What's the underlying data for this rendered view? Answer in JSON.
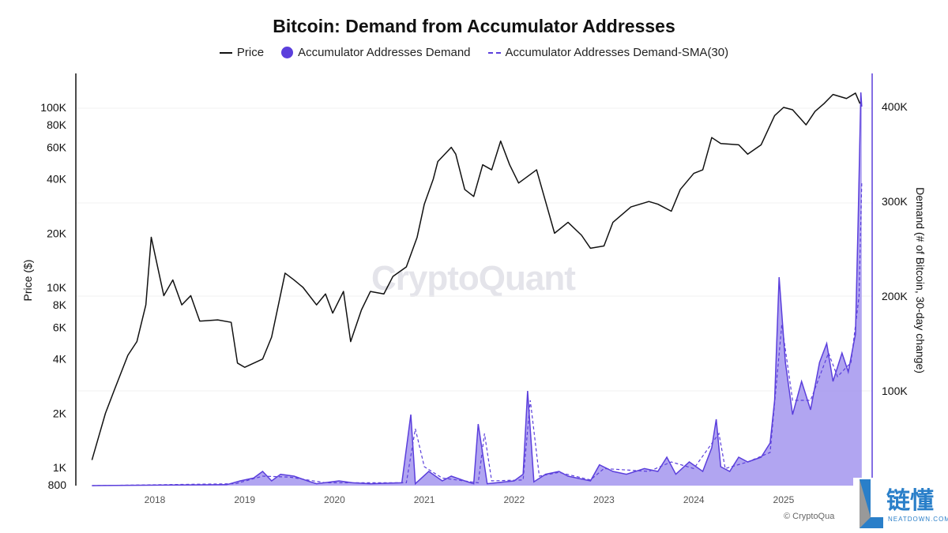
{
  "chart_data": {
    "type": "line",
    "title": "Bitcoin: Demand from Accumulator Addresses",
    "legend": [
      "Price",
      "Accumulator Addresses Demand",
      "Accumulator Addresses Demand-SMA(30)"
    ],
    "legend_placement": "top",
    "ylabel_left": "Price ($)",
    "ylabel_right": "Demand (# of Bitcoin, 30-day change)",
    "y_left_scale": "log",
    "y_left_range": [
      800,
      180000
    ],
    "y_left_ticks": [
      "100K",
      "80K",
      "60K",
      "40K",
      "20K",
      "10K",
      "8K",
      "6K",
      "4K",
      "2K",
      "1K",
      "800"
    ],
    "y_left_tick_values": [
      100000,
      80000,
      60000,
      40000,
      20000,
      10000,
      8000,
      6000,
      4000,
      2000,
      1000,
      800
    ],
    "y_right_range": [
      0,
      430000
    ],
    "y_right_ticks": [
      "400K",
      "300K",
      "200K",
      "100K"
    ],
    "y_right_tick_values": [
      400000,
      300000,
      200000,
      100000
    ],
    "x_ticks": [
      "2018",
      "2019",
      "2020",
      "2021",
      "2022",
      "2023",
      "2024",
      "2025"
    ],
    "colors": {
      "price": "#111111",
      "demand": "#5b3fdc",
      "demand_fill": "#a99bf0",
      "sma": "#5b3fdc"
    },
    "price": [
      [
        2017.3,
        1100
      ],
      [
        2017.45,
        2000
      ],
      [
        2017.55,
        2700
      ],
      [
        2017.7,
        4200
      ],
      [
        2017.8,
        5000
      ],
      [
        2017.9,
        8000
      ],
      [
        2017.96,
        19000
      ],
      [
        2018.1,
        9000
      ],
      [
        2018.2,
        11000
      ],
      [
        2018.3,
        8000
      ],
      [
        2018.4,
        9000
      ],
      [
        2018.5,
        6500
      ],
      [
        2018.7,
        6600
      ],
      [
        2018.85,
        6400
      ],
      [
        2018.92,
        3800
      ],
      [
        2019.0,
        3600
      ],
      [
        2019.2,
        4000
      ],
      [
        2019.3,
        5300
      ],
      [
        2019.45,
        12000
      ],
      [
        2019.55,
        11000
      ],
      [
        2019.65,
        10000
      ],
      [
        2019.8,
        8000
      ],
      [
        2019.9,
        9200
      ],
      [
        2019.98,
        7200
      ],
      [
        2020.1,
        9500
      ],
      [
        2020.18,
        5000
      ],
      [
        2020.3,
        7500
      ],
      [
        2020.4,
        9500
      ],
      [
        2020.55,
        9200
      ],
      [
        2020.65,
        11500
      ],
      [
        2020.8,
        13000
      ],
      [
        2020.92,
        19000
      ],
      [
        2021.0,
        29000
      ],
      [
        2021.1,
        40000
      ],
      [
        2021.15,
        50000
      ],
      [
        2021.3,
        60000
      ],
      [
        2021.35,
        55000
      ],
      [
        2021.45,
        35000
      ],
      [
        2021.55,
        32000
      ],
      [
        2021.65,
        48000
      ],
      [
        2021.75,
        45000
      ],
      [
        2021.85,
        65000
      ],
      [
        2021.95,
        48000
      ],
      [
        2022.05,
        38000
      ],
      [
        2022.25,
        45000
      ],
      [
        2022.35,
        30000
      ],
      [
        2022.45,
        20000
      ],
      [
        2022.6,
        23000
      ],
      [
        2022.75,
        19500
      ],
      [
        2022.85,
        16500
      ],
      [
        2023.0,
        17000
      ],
      [
        2023.1,
        23000
      ],
      [
        2023.3,
        28000
      ],
      [
        2023.5,
        30000
      ],
      [
        2023.6,
        29000
      ],
      [
        2023.75,
        26500
      ],
      [
        2023.85,
        35000
      ],
      [
        2024.0,
        43000
      ],
      [
        2024.1,
        45000
      ],
      [
        2024.2,
        68000
      ],
      [
        2024.3,
        63000
      ],
      [
        2024.5,
        62000
      ],
      [
        2024.6,
        55000
      ],
      [
        2024.75,
        62000
      ],
      [
        2024.9,
        90000
      ],
      [
        2025.0,
        100000
      ],
      [
        2025.1,
        97000
      ],
      [
        2025.25,
        80000
      ],
      [
        2025.35,
        95000
      ],
      [
        2025.45,
        105000
      ],
      [
        2025.55,
        118000
      ],
      [
        2025.7,
        112000
      ],
      [
        2025.8,
        120000
      ],
      [
        2025.85,
        105000
      ]
    ],
    "demand": [
      [
        2017.3,
        0
      ],
      [
        2018.8,
        1000
      ],
      [
        2018.95,
        5000
      ],
      [
        2019.1,
        8000
      ],
      [
        2019.2,
        15000
      ],
      [
        2019.3,
        5000
      ],
      [
        2019.4,
        12000
      ],
      [
        2019.55,
        10000
      ],
      [
        2019.7,
        5000
      ],
      [
        2019.8,
        2000
      ],
      [
        2020.05,
        5000
      ],
      [
        2020.2,
        3000
      ],
      [
        2020.4,
        2000
      ],
      [
        2020.75,
        3000
      ],
      [
        2020.85,
        75000
      ],
      [
        2020.9,
        2000
      ],
      [
        2021.05,
        15000
      ],
      [
        2021.2,
        5000
      ],
      [
        2021.3,
        10000
      ],
      [
        2021.45,
        5000
      ],
      [
        2021.55,
        2000
      ],
      [
        2021.6,
        65000
      ],
      [
        2021.7,
        2000
      ],
      [
        2022.0,
        5000
      ],
      [
        2022.1,
        12000
      ],
      [
        2022.15,
        100000
      ],
      [
        2022.22,
        4000
      ],
      [
        2022.35,
        12000
      ],
      [
        2022.5,
        15000
      ],
      [
        2022.6,
        10000
      ],
      [
        2022.85,
        5000
      ],
      [
        2022.95,
        22000
      ],
      [
        2023.1,
        15000
      ],
      [
        2023.25,
        12000
      ],
      [
        2023.45,
        18000
      ],
      [
        2023.6,
        15000
      ],
      [
        2023.7,
        30000
      ],
      [
        2023.8,
        12000
      ],
      [
        2023.95,
        25000
      ],
      [
        2024.1,
        15000
      ],
      [
        2024.2,
        40000
      ],
      [
        2024.25,
        70000
      ],
      [
        2024.3,
        20000
      ],
      [
        2024.4,
        15000
      ],
      [
        2024.5,
        30000
      ],
      [
        2024.6,
        25000
      ],
      [
        2024.75,
        30000
      ],
      [
        2024.85,
        45000
      ],
      [
        2024.9,
        90000
      ],
      [
        2024.95,
        220000
      ],
      [
        2025.02,
        130000
      ],
      [
        2025.1,
        75000
      ],
      [
        2025.2,
        110000
      ],
      [
        2025.3,
        80000
      ],
      [
        2025.4,
        130000
      ],
      [
        2025.48,
        150000
      ],
      [
        2025.55,
        110000
      ],
      [
        2025.65,
        140000
      ],
      [
        2025.72,
        120000
      ],
      [
        2025.8,
        160000
      ],
      [
        2025.83,
        280000
      ],
      [
        2025.86,
        415000
      ],
      [
        2025.87,
        400000
      ]
    ],
    "sma": [
      [
        2017.3,
        0
      ],
      [
        2018.9,
        2000
      ],
      [
        2019.2,
        10000
      ],
      [
        2019.5,
        9000
      ],
      [
        2019.9,
        3000
      ],
      [
        2020.8,
        3000
      ],
      [
        2020.9,
        60000
      ],
      [
        2021.0,
        20000
      ],
      [
        2021.2,
        8000
      ],
      [
        2021.6,
        3000
      ],
      [
        2021.67,
        55000
      ],
      [
        2021.75,
        5000
      ],
      [
        2022.1,
        6000
      ],
      [
        2022.18,
        90000
      ],
      [
        2022.28,
        10000
      ],
      [
        2022.5,
        14000
      ],
      [
        2022.85,
        6000
      ],
      [
        2023.0,
        18000
      ],
      [
        2023.5,
        15000
      ],
      [
        2023.75,
        25000
      ],
      [
        2024.0,
        18000
      ],
      [
        2024.28,
        55000
      ],
      [
        2024.35,
        18000
      ],
      [
        2024.6,
        25000
      ],
      [
        2024.85,
        35000
      ],
      [
        2024.98,
        170000
      ],
      [
        2025.1,
        90000
      ],
      [
        2025.3,
        90000
      ],
      [
        2025.5,
        140000
      ],
      [
        2025.6,
        115000
      ],
      [
        2025.75,
        130000
      ],
      [
        2025.84,
        200000
      ],
      [
        2025.87,
        320000
      ]
    ]
  },
  "watermark": "CryptoQuant",
  "copyright": "© CryptoQua",
  "logo": {
    "cn": "链懂",
    "en": "NEATDOWN.COM"
  }
}
